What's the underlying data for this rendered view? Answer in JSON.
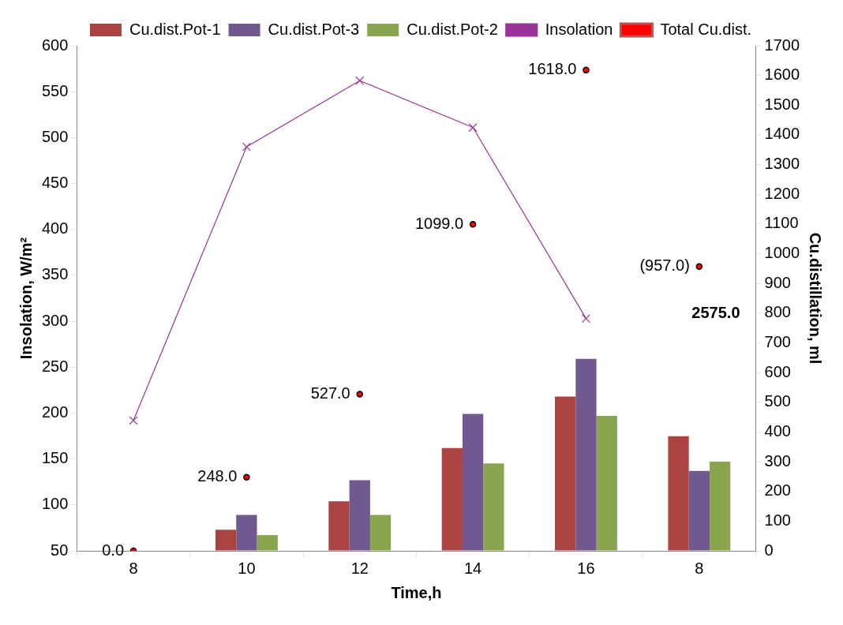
{
  "chart_data": {
    "type": "bar",
    "xlabel": "Time,h",
    "ylabel": "Insolation, W/m²",
    "y2label": "Cu.distillation, ml",
    "categories": [
      "8",
      "10",
      "12",
      "14",
      "16",
      "8"
    ],
    "series": [
      {
        "name": "Cu.dist.Pot-1",
        "axis": "y2",
        "color": "#a94442",
        "values": [
          0,
          71,
          167,
          346,
          519,
          386
        ]
      },
      {
        "name": "Cu.dist.Pot-3",
        "axis": "y2",
        "color": "#71588f",
        "values": [
          0,
          121,
          238,
          461,
          646,
          269
        ]
      },
      {
        "name": "Cu.dist.Pot-2",
        "axis": "y2",
        "color": "#89a54e",
        "values": [
          0,
          53,
          121,
          294,
          454,
          300
        ]
      },
      {
        "name": "Insolation",
        "type": "line",
        "axis": "y",
        "color": "#993399",
        "marker": "cross",
        "values": [
          192,
          490,
          562,
          511,
          303,
          null
        ]
      },
      {
        "name": "Total Cu.dist.",
        "type": "scatter",
        "axis": "y2",
        "color": "#ff0000",
        "marker": "circle",
        "values": [
          0,
          248,
          527,
          1099,
          1618,
          957
        ],
        "value_labels": [
          "0.0",
          "248.0",
          "527.0",
          "1099.0",
          "1618.0",
          "(957.0)"
        ]
      }
    ],
    "ylim": [
      50,
      600
    ],
    "yticks": [
      50,
      100,
      150,
      200,
      250,
      300,
      350,
      400,
      450,
      500,
      550,
      600
    ],
    "y2lim": [
      0,
      1700
    ],
    "y2ticks": [
      0,
      100,
      200,
      300,
      400,
      500,
      600,
      700,
      800,
      900,
      1000,
      1100,
      1200,
      1300,
      1400,
      1500,
      1600,
      1700
    ],
    "legend": "top",
    "annotations": [
      "2575.0"
    ]
  }
}
